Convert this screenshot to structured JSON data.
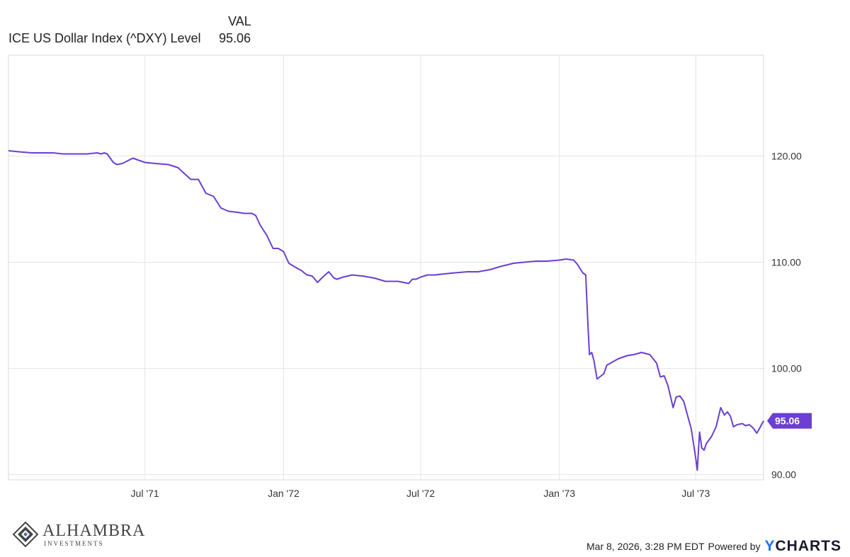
{
  "legend": {
    "column_header": "VAL",
    "series_name": "ICE US Dollar Index (^DXY) Level",
    "series_value": "95.06"
  },
  "colors": {
    "line": "#6a3fd1",
    "grid": "#e6e6e6",
    "axis_box": "#d8d8d8",
    "label_bg": "#6a3fd1"
  },
  "chart_data": {
    "type": "line",
    "title": "",
    "xlabel": "",
    "ylabel": "",
    "x_ticks": [
      "Jul '71",
      "Jan '72",
      "Jul '72",
      "Jan '73",
      "Jul '73"
    ],
    "y_ticks": [
      "90.00",
      "100.00",
      "110.00",
      "120.00"
    ],
    "ylim": [
      89.5,
      129.5
    ],
    "xlim": [
      "1971-01-01",
      "1973-09-29"
    ],
    "grid": true,
    "last_value_label": "95.06",
    "series": [
      {
        "name": "ICE US Dollar Index (^DXY) Level",
        "x": [
          "1971-01-01",
          "1971-01-15",
          "1971-02-01",
          "1971-02-15",
          "1971-03-01",
          "1971-03-15",
          "1971-04-01",
          "1971-04-15",
          "1971-04-29",
          "1971-05-04",
          "1971-05-08",
          "1971-05-12",
          "1971-05-20",
          "1971-05-25",
          "1971-06-01",
          "1971-06-15",
          "1971-07-01",
          "1971-07-15",
          "1971-08-01",
          "1971-08-10",
          "1971-08-14",
          "1971-08-20",
          "1971-08-31",
          "1971-09-10",
          "1971-09-20",
          "1971-09-30",
          "1971-10-10",
          "1971-10-20",
          "1971-11-01",
          "1971-11-10",
          "1971-11-20",
          "1971-11-25",
          "1971-12-01",
          "1971-12-10",
          "1971-12-18",
          "1971-12-25",
          "1972-01-01",
          "1972-01-08",
          "1972-01-15",
          "1972-01-25",
          "1972-02-01",
          "1972-02-08",
          "1972-02-15",
          "1972-02-22",
          "1972-03-01",
          "1972-03-08",
          "1972-03-12",
          "1972-03-20",
          "1972-04-01",
          "1972-04-15",
          "1972-05-01",
          "1972-05-15",
          "1972-06-01",
          "1972-06-15",
          "1972-06-20",
          "1972-06-25",
          "1972-07-01",
          "1972-07-10",
          "1972-07-20",
          "1972-08-01",
          "1972-08-15",
          "1972-09-01",
          "1972-09-15",
          "1972-10-01",
          "1972-10-15",
          "1972-11-01",
          "1972-11-15",
          "1972-12-01",
          "1972-12-15",
          "1973-01-01",
          "1973-01-10",
          "1973-01-20",
          "1973-01-25",
          "1973-02-01",
          "1973-02-05",
          "1973-02-08",
          "1973-02-10",
          "1973-02-13",
          "1973-02-16",
          "1973-02-20",
          "1973-03-01",
          "1973-03-05",
          "1973-03-10",
          "1973-03-20",
          "1973-04-01",
          "1973-04-10",
          "1973-04-20",
          "1973-05-01",
          "1973-05-10",
          "1973-05-15",
          "1973-05-20",
          "1973-05-25",
          "1973-06-01",
          "1973-06-05",
          "1973-06-10",
          "1973-06-15",
          "1973-06-20",
          "1973-06-25",
          "1973-07-01",
          "1973-07-03",
          "1973-07-06",
          "1973-07-09",
          "1973-07-12",
          "1973-07-15",
          "1973-07-18",
          "1973-07-22",
          "1973-07-28",
          "1973-08-03",
          "1973-08-08",
          "1973-08-12",
          "1973-08-16",
          "1973-08-20",
          "1973-08-25",
          "1973-09-01",
          "1973-09-05",
          "1973-09-10",
          "1973-09-15",
          "1973-09-20",
          "1973-09-24",
          "1973-09-29"
        ],
        "y": [
          120.5,
          120.4,
          120.3,
          120.3,
          120.3,
          120.2,
          120.2,
          120.2,
          120.3,
          120.2,
          120.3,
          120.2,
          119.4,
          119.2,
          119.3,
          119.8,
          119.4,
          119.3,
          119.2,
          119.0,
          118.9,
          118.5,
          117.8,
          117.8,
          116.5,
          116.2,
          115.1,
          114.8,
          114.7,
          114.6,
          114.6,
          114.4,
          113.5,
          112.5,
          111.3,
          111.3,
          111.0,
          109.9,
          109.6,
          109.2,
          108.8,
          108.7,
          108.1,
          108.6,
          109.1,
          108.5,
          108.4,
          108.6,
          108.8,
          108.7,
          108.5,
          108.2,
          108.2,
          108.0,
          108.4,
          108.4,
          108.6,
          108.8,
          108.8,
          108.9,
          109.0,
          109.1,
          109.1,
          109.3,
          109.6,
          109.9,
          110.0,
          110.1,
          110.1,
          110.2,
          110.3,
          110.2,
          109.8,
          109.0,
          108.8,
          104.0,
          101.3,
          101.5,
          100.7,
          99.0,
          99.5,
          100.3,
          100.5,
          100.9,
          101.2,
          101.3,
          101.5,
          101.3,
          100.5,
          99.2,
          99.3,
          98.4,
          96.3,
          97.3,
          97.4,
          96.9,
          95.6,
          94.3,
          91.5,
          90.4,
          94.0,
          92.5,
          92.3,
          92.9,
          93.2,
          93.6,
          94.5,
          96.3,
          95.6,
          95.9,
          95.5,
          94.5,
          94.7,
          94.8,
          94.6,
          94.7,
          94.4,
          93.9,
          94.4,
          95.06
        ]
      }
    ]
  },
  "footer": {
    "timestamp": "Mar 8, 2026, 3:28 PM EDT",
    "powered_by": "Powered by",
    "brand_y": "Y",
    "brand_rest": "CHARTS"
  },
  "logo": {
    "main": "ALHAMBRA",
    "sub": "INVESTMENTS"
  }
}
